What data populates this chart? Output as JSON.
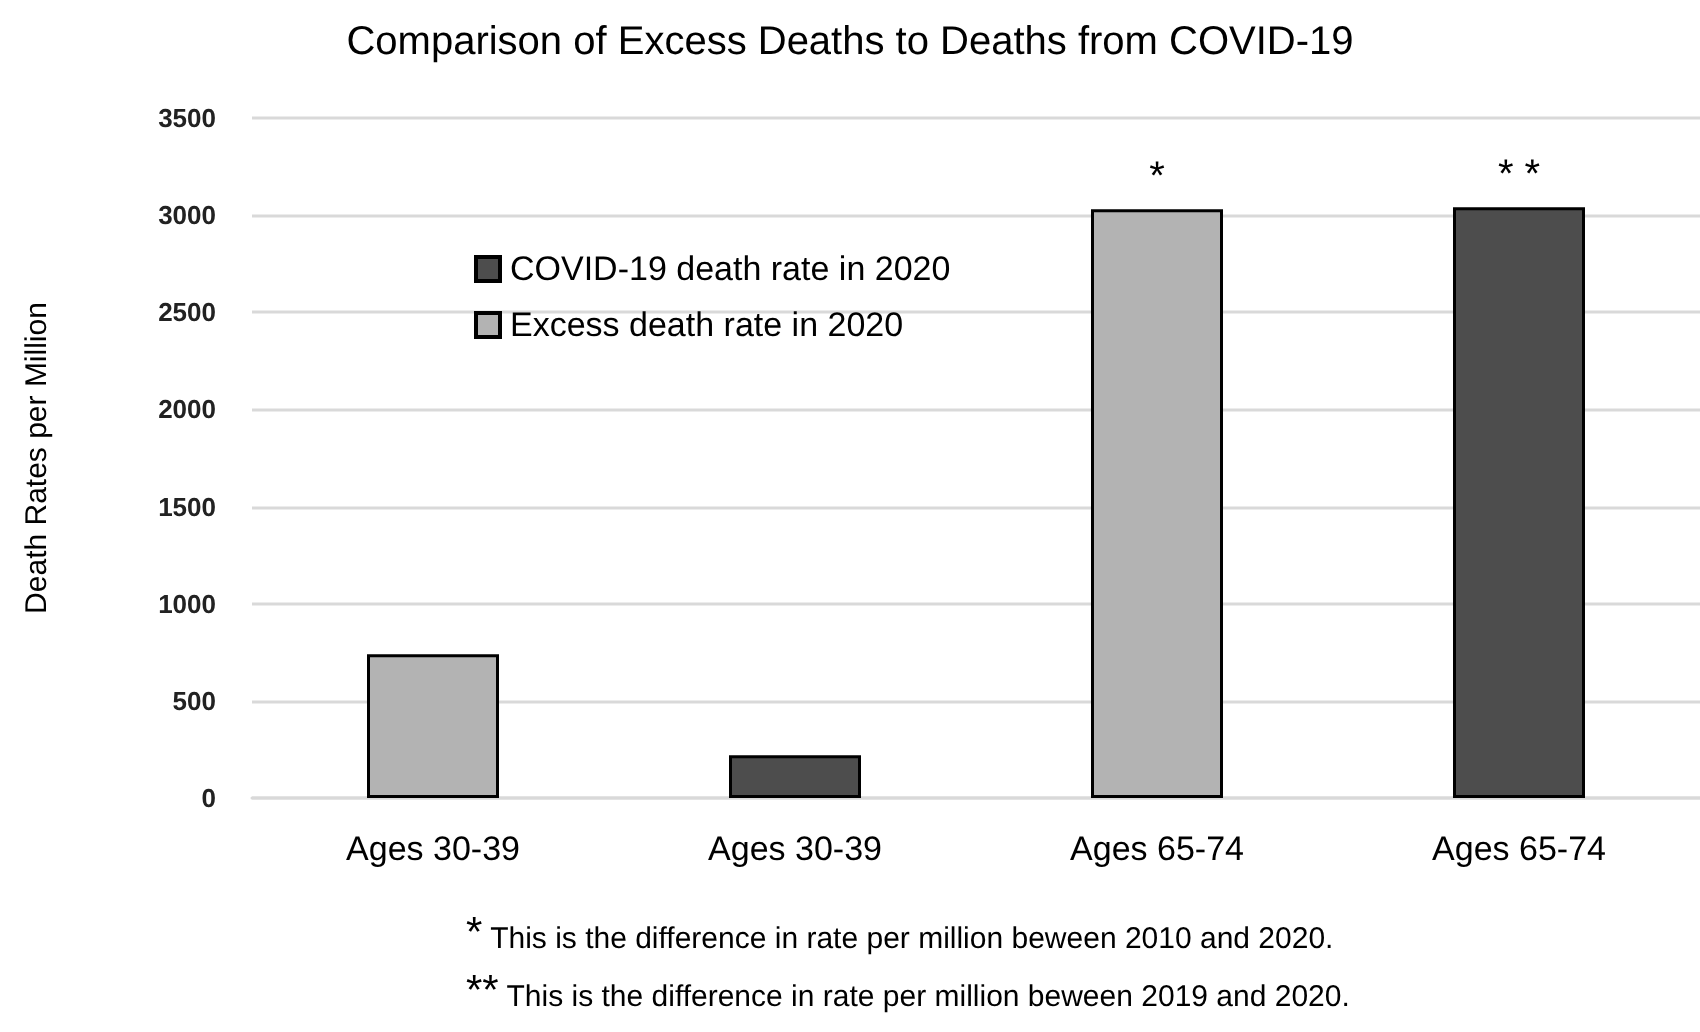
{
  "chart_data": {
    "type": "bar",
    "title": "Comparison of Excess Deaths to Deaths from COVID-19",
    "ylabel": "Death Rates per Million",
    "categories": [
      "Ages 30-39",
      "Ages 30-39",
      "Ages 65-74",
      "Ages 65-74"
    ],
    "series": [
      {
        "name": "COVID-19 death rate in 2020",
        "color": "#4d4d4d",
        "values": [
          null,
          220,
          null,
          3040
        ],
        "value_labels": [
          null,
          null,
          null,
          "* *"
        ]
      },
      {
        "name": "Excess death rate in 2020",
        "color": "#b3b3b3",
        "values": [
          740,
          null,
          3030,
          null
        ],
        "value_labels": [
          null,
          null,
          "*",
          null
        ]
      }
    ],
    "ylim": [
      0,
      3500
    ],
    "yticks": [
      0,
      500,
      1000,
      1500,
      2000,
      2500,
      3000,
      3500
    ],
    "grid": "y",
    "legend": "top left",
    "annotations": [
      "* This is the difference in rate per million beween 2010 and 2020.",
      "** This is the difference in rate per million beween 2019 and 2020."
    ]
  }
}
